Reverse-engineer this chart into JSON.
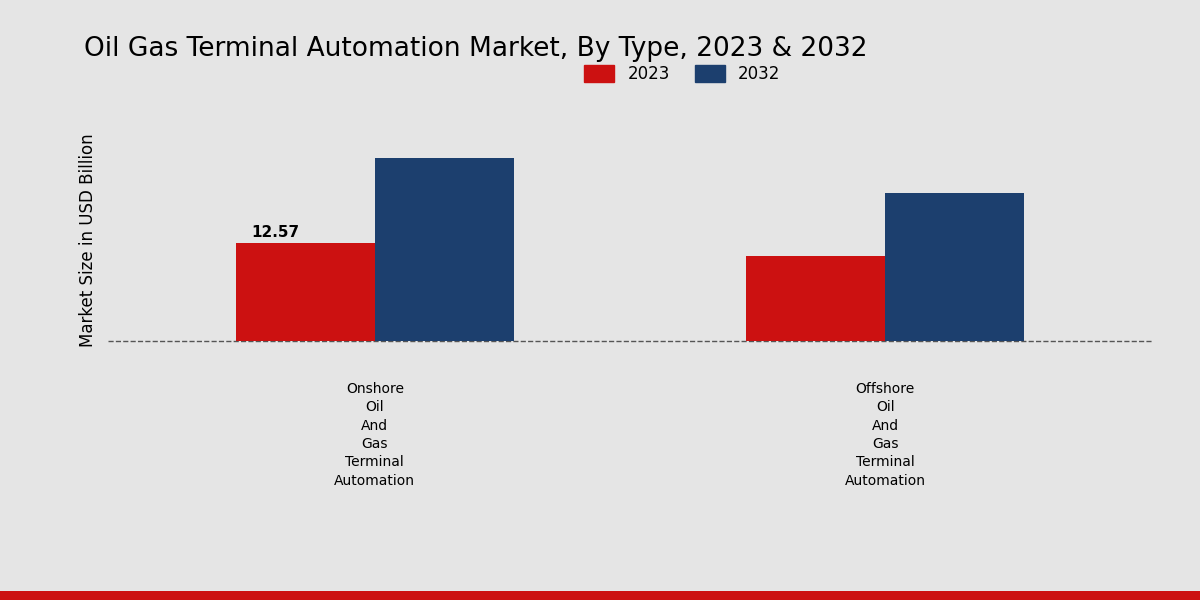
{
  "title": "Oil Gas Terminal Automation Market, By Type, 2023 & 2032",
  "ylabel": "Market Size in USD Billion",
  "categories": [
    "Onshore\nOil\nAnd\nGas\nTerminal\nAutomation",
    "Offshore\nOil\nAnd\nGas\nTerminal\nAutomation"
  ],
  "values_2023": [
    12.57,
    11.0
  ],
  "values_2032": [
    23.5,
    19.0
  ],
  "color_2023": "#cc1111",
  "color_2032": "#1c3f6e",
  "bar_width": 0.12,
  "annotation_2023": "12.57",
  "background_color": "#e5e5e5",
  "legend_labels": [
    "2023",
    "2032"
  ],
  "title_fontsize": 19,
  "ylabel_fontsize": 12,
  "group_positions": [
    0.28,
    0.72
  ],
  "ylim": [
    -4,
    30
  ],
  "xlim": [
    0.05,
    0.95
  ]
}
